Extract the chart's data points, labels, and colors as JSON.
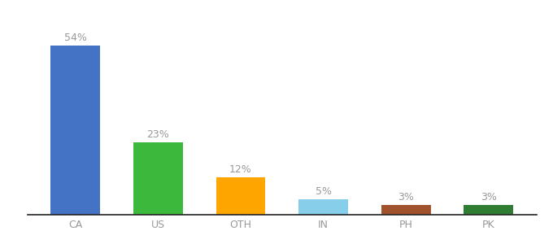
{
  "categories": [
    "CA",
    "US",
    "OTH",
    "IN",
    "PH",
    "PK"
  ],
  "values": [
    54,
    23,
    12,
    5,
    3,
    3
  ],
  "bar_colors": [
    "#4472C4",
    "#3CB93C",
    "#FFA500",
    "#87CEEB",
    "#A0522D",
    "#2E7D32"
  ],
  "ylabel": "",
  "xlabel": "",
  "ylim": [
    0,
    63
  ],
  "background_color": "#ffffff",
  "label_color": "#999999",
  "bar_width": 0.6,
  "tick_fontsize": 9,
  "value_fontsize": 9
}
